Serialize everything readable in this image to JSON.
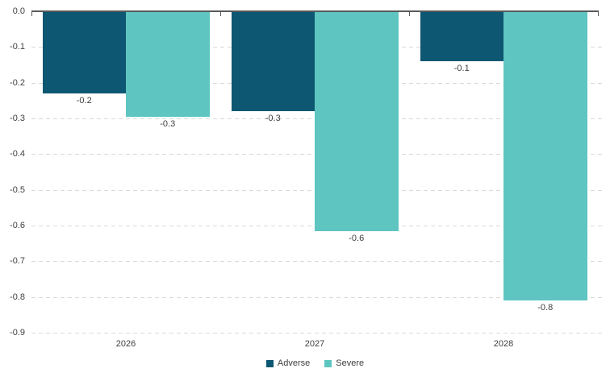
{
  "chart_data": {
    "type": "bar",
    "orientation": "vertical-grouped",
    "title": "",
    "xlabel": "",
    "ylabel": "",
    "categories": [
      "2026",
      "2027",
      "2028"
    ],
    "series": [
      {
        "name": "Adverse",
        "color": "#0d5772",
        "values": [
          -0.23,
          -0.28,
          -0.14
        ],
        "data_labels": [
          "-0.2",
          "-0.3",
          "-0.1"
        ]
      },
      {
        "name": "Severe",
        "color": "#5ec5c1",
        "values": [
          -0.295,
          -0.615,
          -0.81
        ],
        "data_labels": [
          "-0.3",
          "-0.6",
          "-0.8"
        ]
      }
    ],
    "ylim": [
      -0.9,
      0.0
    ],
    "y_ticks": [
      0.0,
      -0.1,
      -0.2,
      -0.3,
      -0.4,
      -0.5,
      -0.6,
      -0.7,
      -0.8,
      -0.9
    ],
    "y_tick_labels": [
      "0.0",
      "-0.1",
      "-0.2",
      "-0.3",
      "-0.4",
      "-0.5",
      "-0.6",
      "-0.7",
      "-0.8",
      "-0.9"
    ],
    "grid": {
      "horizontal": true,
      "style": "dashed",
      "color": "#d9d9d9"
    },
    "axis_line_color": "#595959",
    "text_color": "#404040",
    "legend": {
      "position": "bottom",
      "entries": [
        "Adverse",
        "Severe"
      ]
    }
  }
}
